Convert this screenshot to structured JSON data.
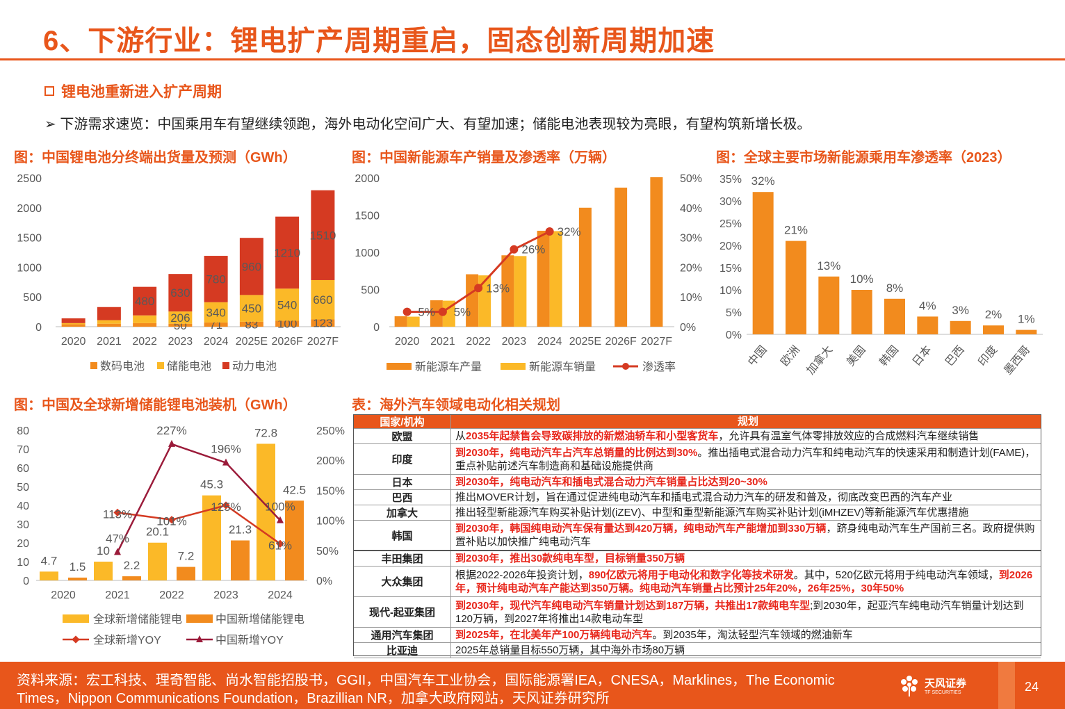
{
  "title": "6、下游行业：锂电扩产周期重启，固态创新周期加速",
  "section": "锂电池重新进入扩产周期",
  "bullet": "➢ 下游需求速览：中国乘用车有望继续领跑，海外电动化空间广大、有望加速；储能电池表现较为亮眼，有望构筑新增长极。",
  "colors": {
    "accent": "#E8561B",
    "orange": "#F28B1E",
    "gold": "#FBB928",
    "red": "#D53A22",
    "darkred": "#9B1B3A"
  },
  "charts": {
    "c1": {
      "title": "图：中国锂电池分终端出货量及预测（GWh）"
    },
    "c2": {
      "title": "图：中国新能源车产销量及渗透率（万辆）"
    },
    "c3": {
      "title": "图：全球主要市场新能源乘用车渗透率（2023）"
    },
    "c4": {
      "title": "图：中国及全球新增储能锂电池装机（GWh）"
    }
  },
  "chart_data": [
    {
      "type": "bar",
      "stacked": true,
      "categories": [
        "2020",
        "2021",
        "2022",
        "2023",
        "2024",
        "2025E",
        "2026F",
        "2027F"
      ],
      "series": [
        {
          "name": "数码电池",
          "values": [
            40,
            50,
            60,
            50,
            71,
            83,
            100,
            123
          ]
        },
        {
          "name": "储能电池",
          "values": [
            20,
            60,
            130,
            206,
            340,
            450,
            540,
            660
          ]
        },
        {
          "name": "动力电池",
          "values": [
            80,
            220,
            480,
            630,
            780,
            960,
            1210,
            1510
          ]
        }
      ],
      "labels": [
        [
          "",
          "",
          "",
          "50",
          "71",
          "83",
          "100",
          "123"
        ],
        [
          "",
          "",
          "",
          "206",
          "340",
          "450",
          "540",
          "660"
        ],
        [
          "",
          "",
          "480",
          "630",
          "780",
          "960",
          "1210",
          "1510"
        ]
      ],
      "yticks": [
        "0",
        "500",
        "1000",
        "1500",
        "2000",
        "2500"
      ],
      "ylim": [
        0,
        2500
      ],
      "legend": "bottom"
    },
    {
      "type": "bar+line",
      "categories": [
        "2020",
        "2021",
        "2022",
        "2023",
        "2024",
        "2025E",
        "2026F",
        "2027F"
      ],
      "series": [
        {
          "name": "新能源车产量",
          "values": [
            140,
            355,
            705,
            960,
            1290,
            1600,
            1870,
            2010
          ]
        },
        {
          "name": "新能源车销量",
          "values": [
            135,
            350,
            690,
            950,
            1285,
            null,
            null,
            null
          ]
        },
        {
          "name": "渗透率",
          "values": [
            5,
            5,
            13,
            26,
            32,
            null,
            null,
            null
          ]
        }
      ],
      "line_labels": [
        "5%",
        "5%",
        "13%",
        "26%",
        "32%"
      ],
      "yticks": [
        "0",
        "500",
        "1000",
        "1500",
        "2000"
      ],
      "y2ticks": [
        "0%",
        "10%",
        "20%",
        "30%",
        "40%",
        "50%"
      ],
      "ylim": [
        0,
        2000
      ],
      "y2lim": [
        0,
        50
      ],
      "legend": "bottom"
    },
    {
      "type": "bar",
      "categories": [
        "中国",
        "欧洲",
        "加拿大",
        "美国",
        "韩国",
        "日本",
        "巴西",
        "印度",
        "墨西哥"
      ],
      "values": [
        32,
        21,
        13,
        10,
        8,
        4,
        3,
        2,
        1
      ],
      "labels": [
        "32%",
        "21%",
        "13%",
        "10%",
        "8%",
        "4%",
        "3%",
        "2%",
        "1%"
      ],
      "yticks": [
        "0%",
        "5%",
        "10%",
        "15%",
        "20%",
        "25%",
        "30%",
        "35%"
      ],
      "ylim": [
        0,
        35
      ]
    },
    {
      "type": "bar+line",
      "categories": [
        "2020",
        "2021",
        "2022",
        "2023",
        "2024"
      ],
      "series": [
        {
          "name": "全球新增储能锂电",
          "values": [
            4.7,
            10,
            20.1,
            45.3,
            72.8
          ]
        },
        {
          "name": "中国新增储能锂电",
          "values": [
            1.5,
            2.2,
            7.2,
            21.3,
            42.5
          ]
        },
        {
          "name": "全球新增YOY",
          "values": [
            null,
            113,
            101,
            125,
            61
          ]
        },
        {
          "name": "中国新增YOY",
          "values": [
            null,
            47,
            227,
            196,
            100
          ]
        }
      ],
      "bar_labels": [
        [
          "4.7",
          "10",
          "20.1",
          "45.3",
          "72.8"
        ],
        [
          "1.5",
          "2.2",
          "7.2",
          "21.3",
          "42.5"
        ]
      ],
      "line_labels": [
        [
          "",
          "113%",
          "101%",
          "125%",
          "61%"
        ],
        [
          "",
          "47%",
          "227%",
          "196%",
          "100%"
        ]
      ],
      "yticks": [
        "0",
        "10",
        "20",
        "30",
        "40",
        "50",
        "60",
        "70",
        "80"
      ],
      "y2ticks": [
        "0%",
        "50%",
        "100%",
        "150%",
        "200%",
        "250%"
      ],
      "ylim": [
        0,
        80
      ],
      "y2lim": [
        0,
        250
      ],
      "legend": "bottom"
    }
  ],
  "table": {
    "title": "表：海外汽车领域电动化相关规划",
    "headers": [
      "国家/机构",
      "规划"
    ],
    "rows": [
      {
        "k": "欧盟",
        "parts": [
          {
            "t": "从",
            "r": false
          },
          {
            "t": "2035年起禁售会导致碳排放的新燃油轿车和小型客货车",
            "r": true
          },
          {
            "t": "，允许具有温室气体零排放效应的合成燃料汽车继续销售",
            "r": false
          }
        ]
      },
      {
        "k": "印度",
        "parts": [
          {
            "t": "到2030年，纯电动汽车占汽车总销量的比例达到30%",
            "r": true
          },
          {
            "t": "。推出插电式混合动力汽车和纯电动汽车的快速采用和制造计划(FAME)，重点补贴前述汽车制造商和基础设施提供商",
            "r": false
          }
        ]
      },
      {
        "k": "日本",
        "parts": [
          {
            "t": "到2030年，纯电动汽车和插电式混合动力汽车销量占比达到20~30%",
            "r": true
          }
        ]
      },
      {
        "k": "巴西",
        "parts": [
          {
            "t": "推出MOVER计划，旨在通过促进纯电动汽车和插电式混合动力汽车的研发和普及，彻底改变巴西的汽车产业",
            "r": false
          }
        ]
      },
      {
        "k": "加拿大",
        "parts": [
          {
            "t": "推出轻型新能源汽车购买补贴计划(iZEV)、中型和重型新能源汽车购买补贴计划(iMHZEV)等新能源汽车优惠措施",
            "r": false
          }
        ]
      },
      {
        "k": "韩国",
        "parts": [
          {
            "t": "到2030年，韩国纯电动汽车保有量达到420万辆，纯电动汽车产能增加到330万辆",
            "r": true
          },
          {
            "t": "，跻身纯电动汽车生产国前三名。政府提供购置补贴以加快推广纯电动汽车",
            "r": false
          }
        ]
      },
      {
        "k": "丰田集团",
        "parts": [
          {
            "t": "到2030年，推出30款纯电车型，目标销量350万辆",
            "r": true
          }
        ]
      },
      {
        "k": "大众集团",
        "parts": [
          {
            "t": "根据2022-2026年投资计划，",
            "r": false
          },
          {
            "t": "890亿欧元将用于电动化和数字化等技术研发",
            "r": true
          },
          {
            "t": "。其中，520亿欧元将用于纯电动汽车领域，",
            "r": false
          },
          {
            "t": "到2026年，预计纯电动汽车产能达到350万辆。纯电动汽车销量占比预计25年20%，26年25%，30年50%",
            "r": true
          }
        ]
      },
      {
        "k": "现代-起亚集团",
        "parts": [
          {
            "t": "到2030年，现代汽车纯电动汽车销量计划达到187万辆，共推出17款纯电车型",
            "r": true
          },
          {
            "t": ";到2030年，起亚汽车纯电动汽车销量计划达到120万辆，到2027年将推出14款电动车型",
            "r": false
          }
        ]
      },
      {
        "k": "通用汽车集团",
        "parts": [
          {
            "t": "到2025年，在北美年产100万辆纯电动汽车",
            "r": true
          },
          {
            "t": "。到2035年，淘汰轻型汽车领域的燃油新车",
            "r": false
          }
        ]
      },
      {
        "k": "比亚迪",
        "parts": [
          {
            "t": "2025年总销量目标550万辆，其中海外市场80万辆",
            "r": false
          }
        ]
      }
    ]
  },
  "footer": {
    "source": "资料来源：宏工科技、理奇智能、尚水智能招股书，GGII，中国汽车工业协会，国际能源署IEA，CNESA，Marklines，The Economic Times，Nippon Communications Foundation，Brazillian NR，加拿大政府网站，天风证券研究所",
    "logo_cn": "天风证券",
    "logo_en": "TF SECURITIES",
    "page": "24"
  }
}
